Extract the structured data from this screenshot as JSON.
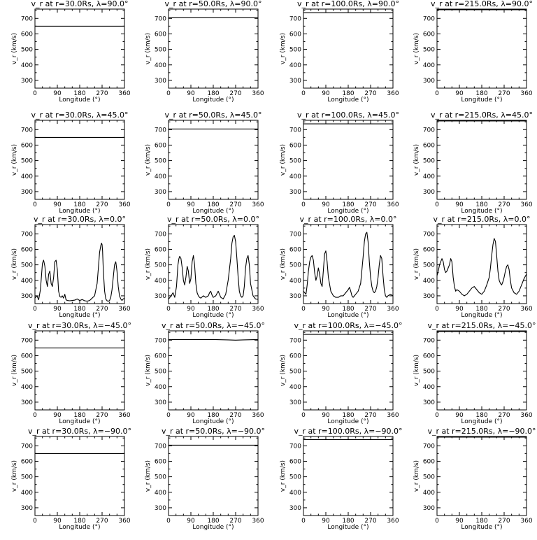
{
  "figure": {
    "x_ticks": [
      "0",
      "90",
      "180",
      "270",
      "360"
    ],
    "y_ticks": [
      "300",
      "400",
      "500",
      "600",
      "700"
    ],
    "line_color": "#000000",
    "background": "#ffffff"
  },
  "chart_data": [
    {
      "type": "line",
      "title": "v_r at r=30.0Rs, λ=90.0°",
      "xlabel": "Longitude (°)",
      "ylabel": "v_r (km/s)",
      "xlim": [
        0,
        360
      ],
      "ylim": [
        250,
        760
      ],
      "series": [
        {
          "x": [
            0,
            360
          ],
          "y": [
            650,
            650
          ]
        }
      ]
    },
    {
      "type": "line",
      "title": "v_r at r=50.0Rs, λ=90.0°",
      "xlabel": "Longitude (°)",
      "ylabel": "v_r (km/s)",
      "xlim": [
        0,
        360
      ],
      "ylim": [
        250,
        760
      ],
      "series": [
        {
          "x": [
            0,
            360
          ],
          "y": [
            704,
            704
          ]
        }
      ]
    },
    {
      "type": "line",
      "title": "v_r at r=100.0Rs, λ=90.0°",
      "xlabel": "Longitude (°)",
      "ylabel": "v_r (km/s)",
      "xlim": [
        0,
        360
      ],
      "ylim": [
        250,
        760
      ],
      "series": [
        {
          "x": [
            0,
            360
          ],
          "y": [
            737,
            737
          ]
        }
      ]
    },
    {
      "type": "line",
      "title": "v_r at r=215.0Rs, λ=90.0°",
      "xlabel": "Longitude (°)",
      "ylabel": "v_r (km/s)",
      "xlim": [
        0,
        360
      ],
      "ylim": [
        250,
        760
      ],
      "series": [
        {
          "x": [
            0,
            360
          ],
          "y": [
            756,
            756
          ]
        }
      ]
    },
    {
      "type": "line",
      "title": "v_r at r=30.0Rs, λ=45.0°",
      "xlabel": "Longitude (°)",
      "ylabel": "v_r (km/s)",
      "xlim": [
        0,
        360
      ],
      "ylim": [
        250,
        760
      ],
      "series": [
        {
          "x": [
            0,
            360
          ],
          "y": [
            650,
            650
          ]
        }
      ]
    },
    {
      "type": "line",
      "title": "v_r at r=50.0Rs, λ=45.0°",
      "xlabel": "Longitude (°)",
      "ylabel": "v_r (km/s)",
      "xlim": [
        0,
        360
      ],
      "ylim": [
        250,
        760
      ],
      "series": [
        {
          "x": [
            0,
            360
          ],
          "y": [
            704,
            704
          ]
        }
      ]
    },
    {
      "type": "line",
      "title": "v_r at r=100.0Rs, λ=45.0°",
      "xlabel": "Longitude (°)",
      "ylabel": "v_r (km/s)",
      "xlim": [
        0,
        360
      ],
      "ylim": [
        250,
        760
      ],
      "series": [
        {
          "x": [
            0,
            360
          ],
          "y": [
            737,
            737
          ]
        }
      ]
    },
    {
      "type": "line",
      "title": "v_r at r=215.0Rs, λ=45.0°",
      "xlabel": "Longitude (°)",
      "ylabel": "v_r (km/s)",
      "xlim": [
        0,
        360
      ],
      "ylim": [
        250,
        760
      ],
      "series": [
        {
          "x": [
            0,
            360
          ],
          "y": [
            756,
            756
          ]
        }
      ]
    },
    {
      "type": "line",
      "title": "v_r at r=30.0Rs, λ=0.0°",
      "xlabel": "Longitude (°)",
      "ylabel": "v_r (km/s)",
      "xlim": [
        0,
        360
      ],
      "ylim": [
        250,
        760
      ],
      "series": [
        {
          "x": [
            0,
            8,
            15,
            22,
            30,
            35,
            40,
            45,
            50,
            55,
            60,
            65,
            70,
            75,
            80,
            85,
            90,
            95,
            100,
            105,
            110,
            115,
            120,
            125,
            130,
            140,
            150,
            160,
            170,
            180,
            190,
            200,
            210,
            220,
            230,
            240,
            250,
            255,
            260,
            265,
            268,
            270,
            272,
            275,
            280,
            285,
            290,
            295,
            300,
            305,
            310,
            315,
            320,
            325,
            330,
            335,
            340,
            345,
            350,
            355,
            360
          ],
          "y": [
            285,
            300,
            275,
            340,
            510,
            530,
            490,
            400,
            360,
            440,
            460,
            380,
            360,
            420,
            520,
            530,
            470,
            330,
            295,
            290,
            300,
            285,
            310,
            275,
            270,
            268,
            270,
            272,
            280,
            270,
            276,
            268,
            266,
            270,
            285,
            300,
            380,
            480,
            580,
            625,
            640,
            630,
            590,
            460,
            330,
            280,
            268,
            265,
            270,
            290,
            340,
            420,
            500,
            520,
            460,
            360,
            300,
            280,
            270,
            280,
            285
          ]
        }
      ]
    },
    {
      "type": "line",
      "title": "v_r at r=50.0Rs, λ=0.0°",
      "xlabel": "Longitude (°)",
      "ylabel": "v_r (km/s)",
      "xlim": [
        0,
        360
      ],
      "ylim": [
        250,
        760
      ],
      "series": [
        {
          "x": [
            0,
            10,
            18,
            25,
            32,
            38,
            42,
            45,
            50,
            55,
            60,
            65,
            70,
            75,
            80,
            85,
            90,
            95,
            100,
            105,
            110,
            115,
            120,
            125,
            130,
            140,
            150,
            160,
            165,
            170,
            175,
            180,
            190,
            200,
            210,
            220,
            230,
            240,
            250,
            255,
            260,
            265,
            270,
            275,
            280,
            285,
            290,
            295,
            300,
            305,
            310,
            315,
            320,
            325,
            330,
            340,
            350,
            360
          ],
          "y": [
            278,
            300,
            320,
            290,
            360,
            500,
            540,
            555,
            540,
            480,
            400,
            370,
            420,
            490,
            460,
            380,
            410,
            520,
            560,
            500,
            380,
            320,
            300,
            290,
            285,
            300,
            290,
            300,
            320,
            330,
            305,
            290,
            300,
            330,
            290,
            280,
            310,
            400,
            540,
            640,
            680,
            690,
            650,
            540,
            420,
            330,
            300,
            290,
            300,
            360,
            480,
            540,
            560,
            500,
            380,
            300,
            280,
            278
          ]
        }
      ]
    },
    {
      "type": "line",
      "title": "v_r at r=100.0Rs, λ=0.0°",
      "xlabel": "Longitude (°)",
      "ylabel": "v_r (km/s)",
      "xlim": [
        0,
        360
      ],
      "ylim": [
        250,
        760
      ],
      "series": [
        {
          "x": [
            0,
            5,
            10,
            15,
            20,
            25,
            30,
            35,
            40,
            45,
            50,
            55,
            60,
            65,
            70,
            75,
            80,
            85,
            90,
            95,
            100,
            110,
            120,
            130,
            140,
            150,
            160,
            170,
            180,
            185,
            190,
            195,
            200,
            210,
            220,
            230,
            240,
            245,
            250,
            255,
            260,
            265,
            270,
            275,
            280,
            285,
            290,
            295,
            300,
            305,
            310,
            315,
            320,
            325,
            330,
            335,
            340,
            350,
            360
          ],
          "y": [
            330,
            320,
            310,
            370,
            460,
            520,
            550,
            560,
            530,
            450,
            400,
            430,
            480,
            440,
            380,
            360,
            460,
            570,
            590,
            520,
            420,
            330,
            300,
            290,
            290,
            300,
            300,
            320,
            340,
            355,
            330,
            300,
            290,
            310,
            330,
            380,
            550,
            650,
            700,
            710,
            650,
            520,
            420,
            360,
            330,
            320,
            330,
            360,
            420,
            500,
            560,
            540,
            430,
            340,
            300,
            290,
            300,
            310,
            300
          ]
        }
      ]
    },
    {
      "type": "line",
      "title": "v_r at r=215.0Rs, λ=0.0°",
      "xlabel": "Longitude (°)",
      "ylabel": "v_r (km/s)",
      "xlim": [
        0,
        360
      ],
      "ylim": [
        250,
        760
      ],
      "series": [
        {
          "x": [
            0,
            5,
            10,
            15,
            20,
            25,
            30,
            35,
            40,
            45,
            50,
            55,
            60,
            65,
            70,
            75,
            80,
            90,
            100,
            110,
            120,
            130,
            140,
            150,
            160,
            170,
            180,
            190,
            200,
            210,
            215,
            220,
            225,
            230,
            235,
            240,
            245,
            250,
            255,
            260,
            265,
            270,
            275,
            280,
            285,
            290,
            295,
            300,
            310,
            320,
            330,
            340,
            350,
            360
          ],
          "y": [
            430,
            460,
            500,
            520,
            540,
            520,
            470,
            450,
            460,
            480,
            500,
            540,
            520,
            420,
            360,
            330,
            340,
            330,
            310,
            300,
            310,
            330,
            350,
            360,
            340,
            320,
            310,
            330,
            370,
            420,
            480,
            560,
            630,
            670,
            650,
            560,
            460,
            400,
            380,
            370,
            390,
            420,
            460,
            490,
            500,
            470,
            400,
            350,
            320,
            310,
            330,
            370,
            410,
            440
          ]
        }
      ]
    },
    {
      "type": "line",
      "title": "v_r at r=30.0Rs, λ=−45.0°",
      "xlabel": "Longitude (°)",
      "ylabel": "v_r (km/s)",
      "xlim": [
        0,
        360
      ],
      "ylim": [
        250,
        760
      ],
      "series": [
        {
          "x": [
            0,
            360
          ],
          "y": [
            650,
            650
          ]
        }
      ]
    },
    {
      "type": "line",
      "title": "v_r at r=50.0Rs, λ=−45.0°",
      "xlabel": "Longitude (°)",
      "ylabel": "v_r (km/s)",
      "xlim": [
        0,
        360
      ],
      "ylim": [
        250,
        760
      ],
      "series": [
        {
          "x": [
            0,
            180,
            240,
            270,
            300,
            360
          ],
          "y": [
            704,
            704,
            702,
            700,
            702,
            704
          ]
        }
      ]
    },
    {
      "type": "line",
      "title": "v_r at r=100.0Rs, λ=−45.0°",
      "xlabel": "Longitude (°)",
      "ylabel": "v_r (km/s)",
      "xlim": [
        0,
        360
      ],
      "ylim": [
        250,
        760
      ],
      "series": [
        {
          "x": [
            0,
            360
          ],
          "y": [
            737,
            737
          ]
        }
      ]
    },
    {
      "type": "line",
      "title": "v_r at r=215.0Rs, λ=−45.0°",
      "xlabel": "Longitude (°)",
      "ylabel": "v_r (km/s)",
      "xlim": [
        0,
        360
      ],
      "ylim": [
        250,
        760
      ],
      "series": [
        {
          "x": [
            0,
            360
          ],
          "y": [
            756,
            756
          ]
        }
      ]
    },
    {
      "type": "line",
      "title": "v_r at r=30.0Rs, λ=−90.0°",
      "xlabel": "Longitude (°)",
      "ylabel": "v_r (km/s)",
      "xlim": [
        0,
        360
      ],
      "ylim": [
        250,
        760
      ],
      "series": [
        {
          "x": [
            0,
            360
          ],
          "y": [
            650,
            650
          ]
        }
      ]
    },
    {
      "type": "line",
      "title": "v_r at r=50.0Rs, λ=−90.0°",
      "xlabel": "Longitude (°)",
      "ylabel": "v_r (km/s)",
      "xlim": [
        0,
        360
      ],
      "ylim": [
        250,
        760
      ],
      "series": [
        {
          "x": [
            0,
            360
          ],
          "y": [
            704,
            704
          ]
        }
      ]
    },
    {
      "type": "line",
      "title": "v_r at r=100.0Rs, λ=−90.0°",
      "xlabel": "Longitude (°)",
      "ylabel": "v_r (km/s)",
      "xlim": [
        0,
        360
      ],
      "ylim": [
        250,
        760
      ],
      "series": [
        {
          "x": [
            0,
            360
          ],
          "y": [
            740,
            740
          ]
        }
      ]
    },
    {
      "type": "line",
      "title": "v_r at r=215.0Rs, λ=−90.0°",
      "xlabel": "Longitude (°)",
      "ylabel": "v_r (km/s)",
      "xlim": [
        0,
        360
      ],
      "ylim": [
        250,
        760
      ],
      "series": [
        {
          "x": [
            0,
            360
          ],
          "y": [
            756,
            756
          ]
        }
      ]
    }
  ]
}
